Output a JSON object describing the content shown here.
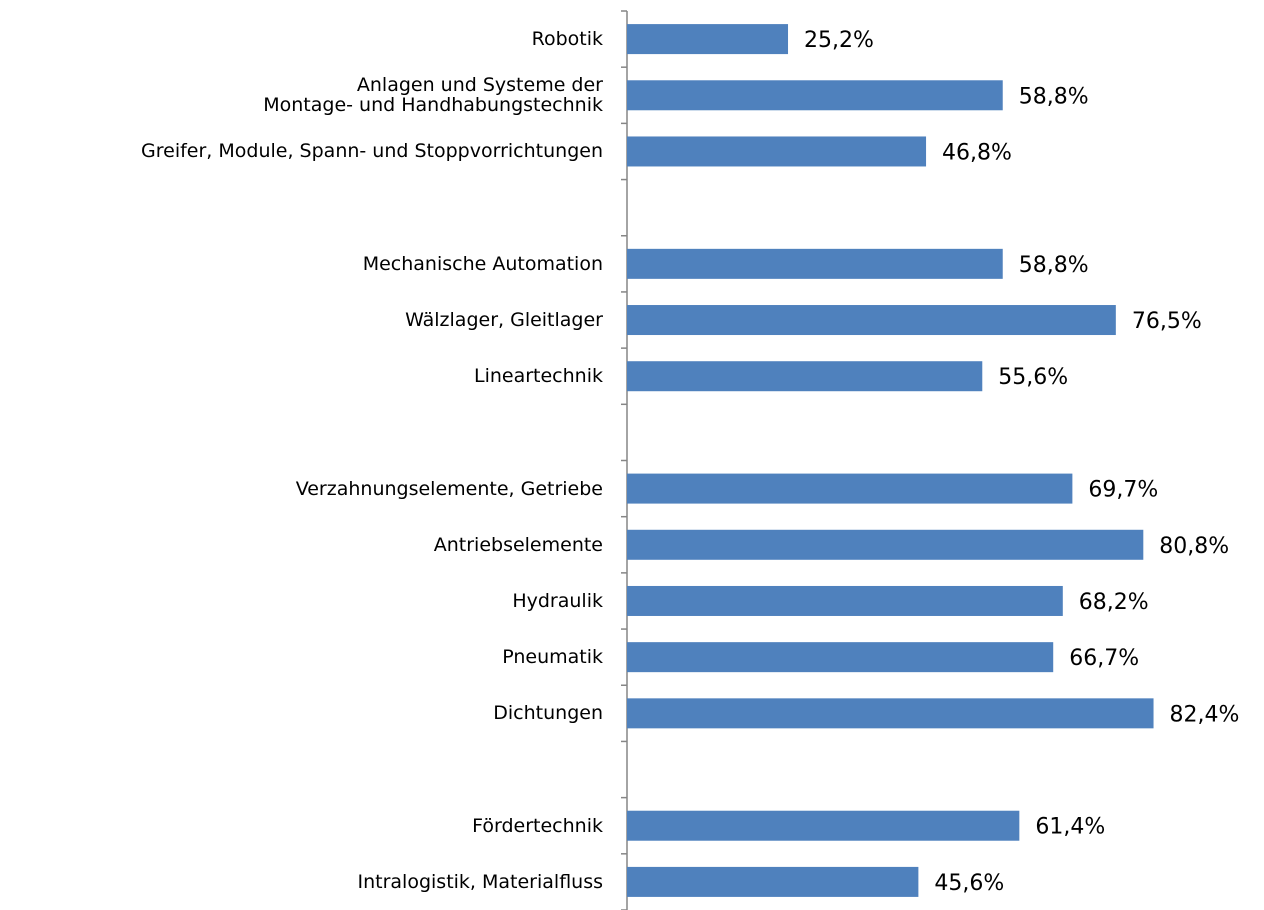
{
  "chart_data": {
    "type": "hbar",
    "categories": [
      "Robotik",
      "Anlagen und Systeme der\nMontage- und Handhabungstechnik",
      "Greifer, Module, Spann- und Stoppvorrichtungen",
      null,
      "Mechanische Automation",
      "Wälzlager, Gleitlager",
      "Lineartechnik",
      null,
      "Verzahnungselemente, Getriebe",
      "Antriebselemente",
      "Hydraulik",
      "Pneumatik",
      "Dichtungen",
      null,
      "Fördertechnik",
      "Intralogistik, Materialfluss"
    ],
    "values": [
      25.2,
      58.8,
      46.8,
      null,
      58.8,
      76.5,
      55.6,
      null,
      69.7,
      80.8,
      68.2,
      66.7,
      82.4,
      null,
      61.4,
      45.6
    ],
    "value_labels": [
      "25,2%",
      "58,8%",
      "46,8%",
      null,
      "58,8%",
      "76,5%",
      "55,6%",
      null,
      "69,7%",
      "80,8%",
      "68,2%",
      "66,7%",
      "82,4%",
      null,
      "61,4%",
      "45,6%"
    ],
    "color": "#4f81bd",
    "xlim": [
      0,
      100
    ]
  }
}
